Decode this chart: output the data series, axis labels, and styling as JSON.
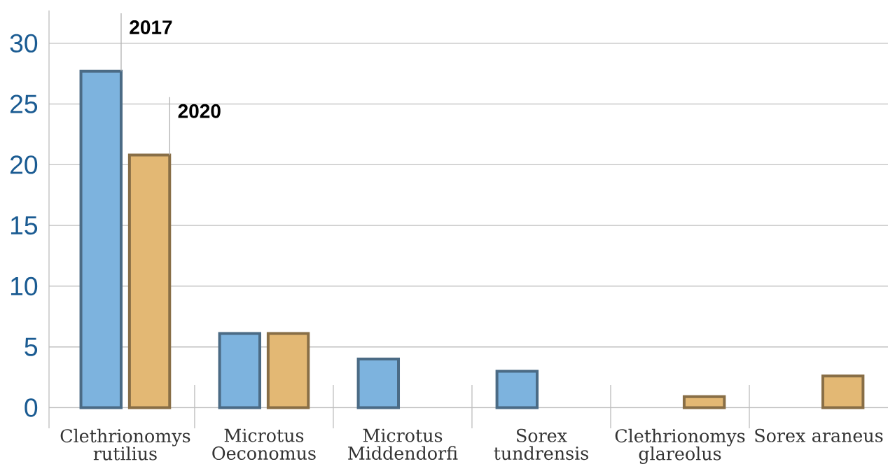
{
  "chart_data": {
    "type": "bar",
    "categories": [
      "Clethrionomys rutilius",
      "Microtus Oeconomus",
      "Microtus Middendorfi",
      "Sorex tundrensis",
      "Clethrionomys glareolus",
      "Sorex araneus"
    ],
    "series": [
      {
        "name": "2017",
        "color": "#7db3de",
        "values": [
          27.7,
          6.1,
          4,
          3,
          null,
          null
        ]
      },
      {
        "name": "2020",
        "color": "#e3b874",
        "values": [
          20.8,
          6.1,
          null,
          null,
          0.9,
          2.6
        ]
      }
    ],
    "ylim": [
      -1.7,
      32.7
    ],
    "yticks": [
      0,
      5,
      10,
      15,
      20,
      25,
      30
    ],
    "grid": "y"
  }
}
